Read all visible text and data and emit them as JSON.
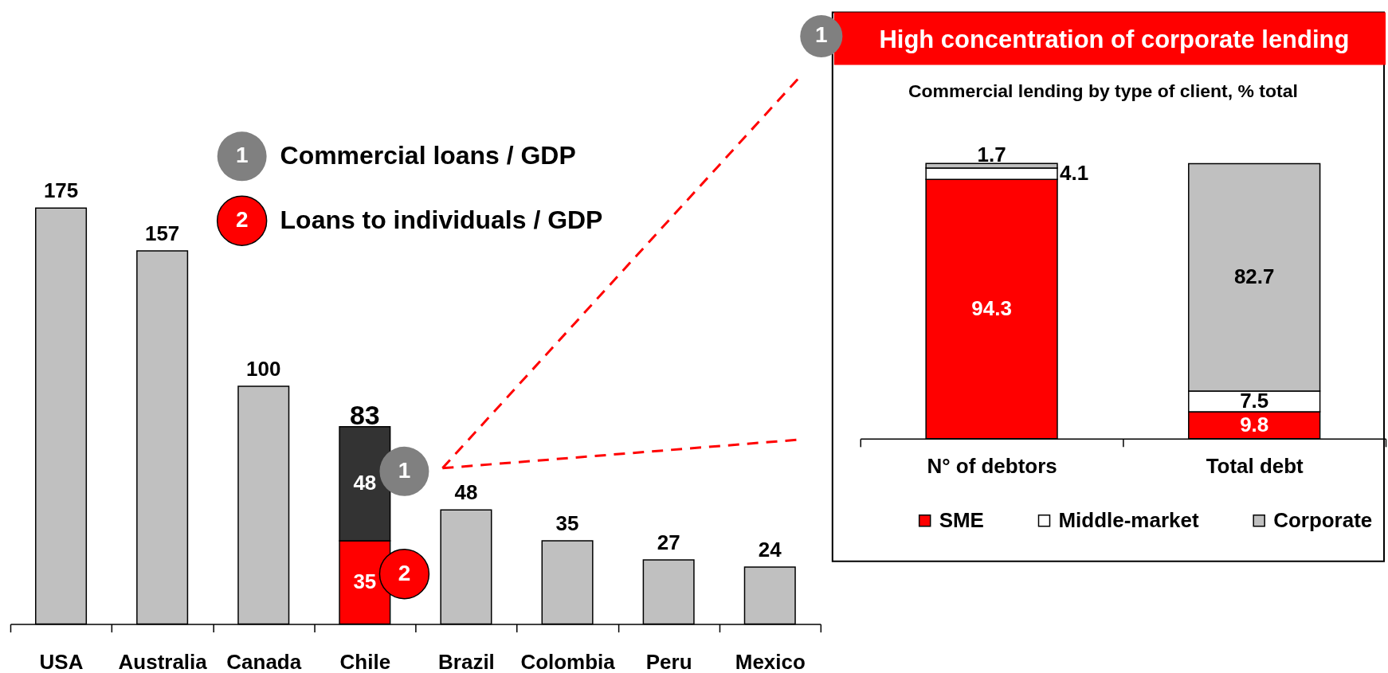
{
  "chart_data": [
    {
      "type": "bar",
      "stacked": true,
      "categories": [
        "USA",
        "Australia",
        "Canada",
        "Chile",
        "Brazil",
        "Colombia",
        "Peru",
        "Mexico"
      ],
      "series": [
        {
          "color": "#c0c0c0",
          "values": [
            175,
            157,
            100,
            null,
            48,
            35,
            27,
            24
          ]
        },
        {
          "color": "#ff0000",
          "values": [
            null,
            null,
            null,
            35,
            null,
            null,
            null,
            null
          ]
        },
        {
          "color": "#333333",
          "values": [
            null,
            null,
            null,
            48,
            null,
            null,
            null,
            null
          ]
        }
      ],
      "data_labels": true,
      "totals": [
        null,
        null,
        null,
        "83",
        null,
        null,
        null,
        null
      ],
      "tick_labels": "x",
      "annotations": [
        "1",
        "Commercial loans / GDP",
        "2",
        "Loans to individuals / GDP",
        "1",
        "2"
      ]
    },
    {
      "type": "bar",
      "stacked": true,
      "title": "High concentration of corporate lending",
      "subtitle": "Commercial lending by type of client, % total",
      "categories": [
        "N° of debtors",
        "Total debt"
      ],
      "series": [
        {
          "name": "SME",
          "color": "#ff0000",
          "values": [
            94.3,
            9.8
          ]
        },
        {
          "name": "Middle-market",
          "color": "#ffffff",
          "values": [
            4.1,
            7.5
          ]
        },
        {
          "name": "Corporate",
          "color": "#c0c0c0",
          "values": [
            1.7,
            82.7
          ]
        }
      ],
      "data_labels": true,
      "legend": "bottom",
      "tick_labels": "x",
      "annotations": [
        "1"
      ]
    }
  ]
}
